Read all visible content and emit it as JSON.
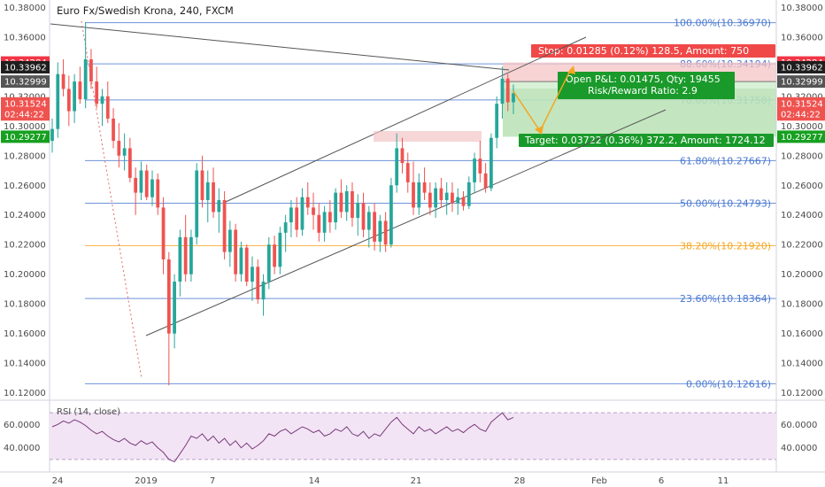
{
  "header": {
    "title": "Euro Fx/Swedish Krona, 240, FXCM"
  },
  "colors": {
    "up": "#26a69a",
    "down": "#ef5350",
    "fib_blue": "#4a78d0",
    "fib_orange": "#f5a623",
    "stop": "#f04848",
    "target": "#1a9a2a",
    "rsi_line": "#7a3a7a",
    "rsi_bg": "#f2e4f5",
    "projection": "#f5a623"
  },
  "chart_data": {
    "type": "candlestick",
    "instrument": "Euro Fx/Swedish Krona",
    "timeframe": "240",
    "source": "FXCM",
    "ylim": [
      10.115,
      10.385
    ],
    "y_ticks": [
      10.38,
      10.36,
      10.34,
      10.32,
      10.3,
      10.28,
      10.26,
      10.24,
      10.22,
      10.2,
      10.18,
      10.16,
      10.14,
      10.12
    ],
    "y_tick_labels": [
      "10.38000",
      "10.36000",
      "10.34000",
      "10.32000",
      "10.30000",
      "10.28000",
      "10.26000",
      "10.24000",
      "10.22000",
      "10.20000",
      "10.18000",
      "10.16000",
      "10.14000",
      "10.12000"
    ],
    "x_tick_labels": [
      "24",
      "2019",
      "7",
      "14",
      "21",
      "28",
      "Feb",
      "6",
      "11"
    ],
    "fib_levels": [
      {
        "label": "100.00%(10.36970)",
        "value": 10.3697,
        "color": "blue"
      },
      {
        "label": "88.60%(10.34194)",
        "value": 10.34194,
        "color": "blue"
      },
      {
        "label": "78.60%(10.31758)",
        "value": 10.31758,
        "color": "blue"
      },
      {
        "label": "61.80%(10.27667)",
        "value": 10.27667,
        "color": "blue"
      },
      {
        "label": "50.00%(10.24793)",
        "value": 10.24793,
        "color": "blue"
      },
      {
        "label": "38.20%(10.21920)",
        "value": 10.2192,
        "color": "orange"
      },
      {
        "label": "23.60%(10.18364)",
        "value": 10.18364,
        "color": "blue"
      },
      {
        "label": "0.00%(10.12616)",
        "value": 10.12616,
        "color": "blue"
      }
    ],
    "price_tags_right": [
      {
        "text": "10.34284",
        "value": 10.34284,
        "color": "#f23645"
      },
      {
        "text": "10.33962",
        "value": 10.33962,
        "color": "#1e1e1e"
      },
      {
        "text": "10.32999",
        "value": 10.32999,
        "color": "#555555"
      },
      {
        "text": "10.31524",
        "value": 10.31524,
        "color": "#ef5350"
      },
      {
        "text": "02:44:22",
        "value": 10.3078,
        "color": "#ef5350"
      },
      {
        "text": "10.29277",
        "value": 10.29277,
        "color": "#17a020"
      }
    ],
    "price_tags_left": [
      {
        "text": "10.34284",
        "value": 10.34284,
        "color": "#f23645"
      },
      {
        "text": "10.33962",
        "value": 10.33962,
        "color": "#1e1e1e"
      },
      {
        "text": "10.32999",
        "value": 10.32999,
        "color": "#555555"
      },
      {
        "text": "10.31524",
        "value": 10.31524,
        "color": "#ef5350"
      },
      {
        "text": "02:44:22",
        "value": 10.3078,
        "color": "#ef5350"
      },
      {
        "text": "10.29277",
        "value": 10.29277,
        "color": "#17a020"
      }
    ],
    "position": {
      "stop_label": "Stop: 0.01285 (0.12%) 128.5, Amount: 750",
      "open_label": "Open P&L: 0.01475, Qty: 19455",
      "rr_label": "Risk/Reward Ratio: 2.9",
      "target_label": "Target: 0.03722 (0.36%) 372.2, Amount: 1724.12",
      "entry": 10.32999,
      "stop": 10.34284,
      "target": 10.29277
    },
    "candles": [
      [
        10.29,
        10.305,
        10.282,
        10.298
      ],
      [
        10.298,
        10.343,
        10.292,
        10.335
      ],
      [
        10.335,
        10.345,
        10.32,
        10.325
      ],
      [
        10.325,
        10.334,
        10.3,
        10.31
      ],
      [
        10.31,
        10.335,
        10.302,
        10.33
      ],
      [
        10.33,
        10.34,
        10.315,
        10.318
      ],
      [
        10.318,
        10.37,
        10.312,
        10.345
      ],
      [
        10.345,
        10.352,
        10.325,
        10.33
      ],
      [
        10.33,
        10.34,
        10.312,
        10.315
      ],
      [
        10.315,
        10.325,
        10.3,
        10.32
      ],
      [
        10.32,
        10.33,
        10.302,
        10.305
      ],
      [
        10.305,
        10.312,
        10.285,
        10.29
      ],
      [
        10.29,
        10.302,
        10.272,
        10.28
      ],
      [
        10.28,
        10.295,
        10.27,
        10.285
      ],
      [
        10.285,
        10.292,
        10.262,
        10.265
      ],
      [
        10.265,
        10.272,
        10.24,
        10.255
      ],
      [
        10.255,
        10.276,
        10.25,
        10.27
      ],
      [
        10.27,
        10.274,
        10.25,
        10.252
      ],
      [
        10.252,
        10.27,
        10.246,
        10.264
      ],
      [
        10.264,
        10.268,
        10.24,
        10.245
      ],
      [
        10.245,
        10.252,
        10.2,
        10.21
      ],
      [
        10.21,
        10.215,
        10.125,
        10.16
      ],
      [
        10.16,
        10.2,
        10.15,
        10.195
      ],
      [
        10.195,
        10.23,
        10.185,
        10.225
      ],
      [
        10.225,
        10.24,
        10.195,
        10.2
      ],
      [
        10.2,
        10.23,
        10.195,
        10.225
      ],
      [
        10.225,
        10.275,
        10.22,
        10.27
      ],
      [
        10.27,
        10.28,
        10.245,
        10.25
      ],
      [
        10.25,
        10.27,
        10.235,
        10.262
      ],
      [
        10.262,
        10.272,
        10.238,
        10.242
      ],
      [
        10.242,
        10.258,
        10.228,
        10.25
      ],
      [
        10.25,
        10.256,
        10.21,
        10.215
      ],
      [
        10.215,
        10.236,
        10.205,
        10.23
      ],
      [
        10.23,
        10.234,
        10.195,
        10.2
      ],
      [
        10.2,
        10.222,
        10.195,
        10.218
      ],
      [
        10.218,
        10.22,
        10.192,
        10.195
      ],
      [
        10.195,
        10.212,
        10.182,
        10.205
      ],
      [
        10.205,
        10.21,
        10.18,
        10.183
      ],
      [
        10.183,
        10.2,
        10.172,
        10.195
      ],
      [
        10.195,
        10.225,
        10.19,
        10.22
      ],
      [
        10.22,
        10.226,
        10.2,
        10.205
      ],
      [
        10.205,
        10.232,
        10.2,
        10.228
      ],
      [
        10.228,
        10.24,
        10.215,
        10.235
      ],
      [
        10.235,
        10.25,
        10.225,
        10.245
      ],
      [
        10.245,
        10.252,
        10.225,
        10.23
      ],
      [
        10.23,
        10.258,
        10.226,
        10.252
      ],
      [
        10.252,
        10.262,
        10.24,
        10.245
      ],
      [
        10.245,
        10.255,
        10.23,
        10.24
      ],
      [
        10.24,
        10.248,
        10.222,
        10.228
      ],
      [
        10.228,
        10.246,
        10.222,
        10.242
      ],
      [
        10.242,
        10.25,
        10.228,
        10.235
      ],
      [
        10.235,
        10.258,
        10.23,
        10.255
      ],
      [
        10.255,
        10.264,
        10.238,
        10.242
      ],
      [
        10.242,
        10.26,
        10.236,
        10.256
      ],
      [
        10.256,
        10.262,
        10.232,
        10.238
      ],
      [
        10.238,
        10.254,
        10.226,
        10.248
      ],
      [
        10.248,
        10.255,
        10.225,
        10.23
      ],
      [
        10.23,
        10.246,
        10.218,
        10.242
      ],
      [
        10.242,
        10.248,
        10.216,
        10.222
      ],
      [
        10.222,
        10.24,
        10.215,
        10.236
      ],
      [
        10.236,
        10.242,
        10.215,
        10.22
      ],
      [
        10.22,
        10.265,
        10.218,
        10.26
      ],
      [
        10.26,
        10.295,
        10.255,
        10.285
      ],
      [
        10.285,
        10.292,
        10.268,
        10.275
      ],
      [
        10.275,
        10.282,
        10.255,
        10.262
      ],
      [
        10.262,
        10.276,
        10.24,
        10.245
      ],
      [
        10.245,
        10.268,
        10.24,
        10.262
      ],
      [
        10.262,
        10.272,
        10.25,
        10.255
      ],
      [
        10.255,
        10.262,
        10.24,
        10.245
      ],
      [
        10.245,
        10.262,
        10.238,
        10.258
      ],
      [
        10.258,
        10.265,
        10.245,
        10.25
      ],
      [
        10.25,
        10.262,
        10.24,
        10.255
      ],
      [
        10.255,
        10.262,
        10.242,
        10.248
      ],
      [
        10.248,
        10.258,
        10.24,
        10.252
      ],
      [
        10.252,
        10.256,
        10.243,
        10.246
      ],
      [
        10.246,
        10.266,
        10.244,
        10.262
      ],
      [
        10.262,
        10.282,
        10.255,
        10.278
      ],
      [
        10.278,
        10.29,
        10.262,
        10.268
      ],
      [
        10.268,
        10.275,
        10.255,
        10.258
      ],
      [
        10.258,
        10.295,
        10.256,
        10.292
      ],
      [
        10.292,
        10.32,
        10.285,
        10.315
      ],
      [
        10.315,
        10.34,
        10.305,
        10.332
      ],
      [
        10.332,
        10.335,
        10.31,
        10.316
      ],
      [
        10.316,
        10.328,
        10.308,
        10.322
      ]
    ]
  },
  "rsi": {
    "label": "RSI (14, close)",
    "ticks": [
      "60.0000",
      "40.0000"
    ],
    "upper": 70,
    "lower": 30,
    "values": [
      58,
      60,
      63,
      61,
      64,
      62,
      59,
      55,
      52,
      54,
      50,
      47,
      45,
      48,
      44,
      42,
      46,
      43,
      45,
      40,
      36,
      30,
      28,
      35,
      42,
      50,
      48,
      52,
      46,
      50,
      44,
      48,
      42,
      46,
      40,
      44,
      39,
      42,
      46,
      52,
      50,
      54,
      56,
      52,
      55,
      58,
      56,
      53,
      55,
      50,
      52,
      56,
      54,
      58,
      52,
      50,
      54,
      48,
      52,
      50,
      56,
      62,
      66,
      60,
      56,
      52,
      58,
      54,
      56,
      52,
      55,
      58,
      54,
      56,
      53,
      57,
      60,
      56,
      54,
      62,
      66,
      70,
      64,
      66
    ]
  }
}
